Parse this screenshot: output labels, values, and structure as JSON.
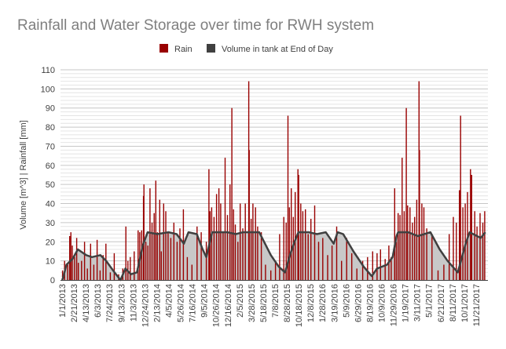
{
  "chart_data": {
    "type": "bar+area",
    "title": "Rainfall and Water Storage over time for RWH system",
    "ylabel": "Volume [m^3] | Rainfall [mm]",
    "xlabel": "",
    "ylim": [
      0,
      110
    ],
    "y_ticks": [
      0,
      10,
      20,
      30,
      40,
      50,
      60,
      70,
      80,
      90,
      100,
      110
    ],
    "grid": "horizontal major every 10, minor every 2",
    "legend_position": "top",
    "x_range": [
      "1/1/2013",
      "12/31/2017"
    ],
    "x_tick_labels": [
      "1/1/2013",
      "2/21/2013",
      "4/13/2013",
      "6/3/2013",
      "7/24/2013",
      "9/13/2013",
      "11/3/2013",
      "12/24/2013",
      "2/13/2014",
      "4/5/2014",
      "5/26/2014",
      "7/16/2014",
      "9/5/2014",
      "10/26/2014",
      "12/16/2014",
      "2/5/2015",
      "3/28/2015",
      "5/18/2015",
      "7/8/2015",
      "8/28/2015",
      "10/18/2015",
      "12/8/2015",
      "1/28/2016",
      "3/19/2016",
      "5/9/2016",
      "6/29/2016",
      "8/19/2016",
      "10/9/2016",
      "11/29/2016",
      "1/19/2017",
      "3/11/2017",
      "5/1/2017",
      "6/21/2017",
      "8/11/2017",
      "10/1/2017",
      "11/21/2017"
    ],
    "colors": {
      "rain": "#990000",
      "volume_line": "#404040",
      "volume_fill": "#c8c8c8"
    },
    "series": [
      {
        "name": "Rain",
        "type": "bar",
        "points": [
          [
            "1/3/2013",
            5
          ],
          [
            "1/12/2013",
            10
          ],
          [
            "1/25/2013",
            8
          ],
          [
            "2/3/2013",
            23
          ],
          [
            "2/8/2013",
            25
          ],
          [
            "2/14/2013",
            18
          ],
          [
            "2/24/2013",
            12
          ],
          [
            "3/5/2013",
            22
          ],
          [
            "3/12/2013",
            9
          ],
          [
            "3/26/2013",
            10
          ],
          [
            "4/8/2013",
            20
          ],
          [
            "4/20/2013",
            6
          ],
          [
            "5/4/2013",
            19
          ],
          [
            "5/18/2013",
            8
          ],
          [
            "6/1/2013",
            21
          ],
          [
            "6/14/2013",
            5
          ],
          [
            "6/27/2013",
            13
          ],
          [
            "7/9/2013",
            19
          ],
          [
            "7/28/2013",
            4
          ],
          [
            "8/14/2013",
            14
          ],
          [
            "9/2/2013",
            3
          ],
          [
            "9/20/2013",
            6
          ],
          [
            "10/3/2013",
            28
          ],
          [
            "10/12/2013",
            10
          ],
          [
            "10/22/2013",
            12
          ],
          [
            "11/8/2013",
            15
          ],
          [
            "11/25/2013",
            26
          ],
          [
            "12/2/2013",
            25
          ],
          [
            "12/10/2013",
            26
          ],
          [
            "12/18/2013",
            44
          ],
          [
            "12/20/2013",
            50
          ],
          [
            "12/28/2013",
            20
          ],
          [
            "1/6/2014",
            18
          ],
          [
            "1/15/2014",
            48
          ],
          [
            "1/24/2014",
            30
          ],
          [
            "2/2/2014",
            35
          ],
          [
            "2/9/2014",
            52
          ],
          [
            "2/16/2014",
            25
          ],
          [
            "2/26/2014",
            42
          ],
          [
            "3/5/2014",
            15
          ],
          [
            "3/15/2014",
            40
          ],
          [
            "3/24/2014",
            36
          ],
          [
            "4/3/2014",
            25
          ],
          [
            "4/15/2014",
            22
          ],
          [
            "4/28/2014",
            30
          ],
          [
            "5/12/2014",
            20
          ],
          [
            "5/24/2014",
            27
          ],
          [
            "6/8/2014",
            37
          ],
          [
            "6/25/2014",
            12
          ],
          [
            "7/15/2014",
            8
          ],
          [
            "8/6/2014",
            28
          ],
          [
            "8/24/2014",
            25
          ],
          [
            "9/15/2014",
            20
          ],
          [
            "9/26/2014",
            58
          ],
          [
            "10/1/2014",
            36
          ],
          [
            "10/8/2014",
            38
          ],
          [
            "10/18/2014",
            33
          ],
          [
            "10/29/2014",
            45
          ],
          [
            "11/8/2014",
            48
          ],
          [
            "11/16/2014",
            40
          ],
          [
            "11/26/2014",
            25
          ],
          [
            "12/5/2014",
            64
          ],
          [
            "12/15/2014",
            34
          ],
          [
            "12/26/2014",
            50
          ],
          [
            "1/3/2015",
            90
          ],
          [
            "1/10/2015",
            37
          ],
          [
            "1/18/2015",
            29
          ],
          [
            "1/29/2015",
            20
          ],
          [
            "2/8/2015",
            40
          ],
          [
            "2/19/2015",
            27
          ],
          [
            "3/2/2015",
            40
          ],
          [
            "3/17/2015",
            104
          ],
          [
            "3/19/2015",
            68
          ],
          [
            "3/27/2015",
            32
          ],
          [
            "4/4/2015",
            40
          ],
          [
            "4/15/2015",
            38
          ],
          [
            "4/24/2015",
            28
          ],
          [
            "5/10/2015",
            25
          ],
          [
            "5/28/2015",
            8
          ],
          [
            "6/20/2015",
            5
          ],
          [
            "7/10/2015",
            10
          ],
          [
            "7/28/2015",
            24
          ],
          [
            "8/15/2015",
            33
          ],
          [
            "8/25/2015",
            30
          ],
          [
            "9/2/2015",
            86
          ],
          [
            "9/8/2015",
            38
          ],
          [
            "9/16/2015",
            48
          ],
          [
            "9/25/2015",
            33
          ],
          [
            "10/3/2015",
            46
          ],
          [
            "10/15/2015",
            58
          ],
          [
            "10/18/2015",
            55
          ],
          [
            "10/27/2015",
            40
          ],
          [
            "11/5/2015",
            36
          ],
          [
            "11/16/2015",
            37
          ],
          [
            "11/28/2015",
            24
          ],
          [
            "12/10/2015",
            32
          ],
          [
            "12/26/2015",
            39
          ],
          [
            "1/12/2016",
            20
          ],
          [
            "1/30/2016",
            22
          ],
          [
            "2/20/2016",
            13
          ],
          [
            "3/10/2016",
            18
          ],
          [
            "3/30/2016",
            28
          ],
          [
            "4/20/2016",
            10
          ],
          [
            "5/12/2016",
            22
          ],
          [
            "6/3/2016",
            14
          ],
          [
            "6/25/2016",
            6
          ],
          [
            "7/20/2016",
            10
          ],
          [
            "8/10/2016",
            12
          ],
          [
            "9/1/2016",
            15
          ],
          [
            "9/20/2016",
            14
          ],
          [
            "10/5/2016",
            16
          ],
          [
            "10/25/2016",
            11
          ],
          [
            "11/10/2016",
            18
          ],
          [
            "11/20/2016",
            12
          ],
          [
            "12/5/2016",
            48
          ],
          [
            "12/12/2016",
            20
          ],
          [
            "12/20/2016",
            35
          ],
          [
            "12/28/2016",
            34
          ],
          [
            "1/6/2017",
            64
          ],
          [
            "1/15/2017",
            36
          ],
          [
            "1/24/2017",
            90
          ],
          [
            "1/30/2017",
            39
          ],
          [
            "2/9/2017",
            38
          ],
          [
            "2/20/2017",
            30
          ],
          [
            "3/1/2017",
            33
          ],
          [
            "3/10/2017",
            42
          ],
          [
            "3/20/2017",
            104
          ],
          [
            "3/22/2017",
            68
          ],
          [
            "4/1/2017",
            40
          ],
          [
            "4/10/2017",
            38
          ],
          [
            "4/22/2017",
            27
          ],
          [
            "5/15/2017",
            24
          ],
          [
            "6/10/2017",
            5
          ],
          [
            "7/5/2017",
            8
          ],
          [
            "7/28/2017",
            24
          ],
          [
            "8/15/2017",
            33
          ],
          [
            "8/28/2017",
            30
          ],
          [
            "9/10/2017",
            47
          ],
          [
            "9/15/2017",
            86
          ],
          [
            "9/25/2017",
            38
          ],
          [
            "10/5/2017",
            40
          ],
          [
            "10/15/2017",
            46
          ],
          [
            "10/28/2017",
            58
          ],
          [
            "11/2/2017",
            55
          ],
          [
            "11/15/2017",
            36
          ],
          [
            "11/25/2017",
            28
          ],
          [
            "12/8/2017",
            35
          ],
          [
            "12/20/2017",
            30
          ],
          [
            "12/28/2017",
            36
          ]
        ]
      },
      {
        "name": "Volume in tank at End of Day",
        "type": "area",
        "points": [
          [
            "1/1/2013",
            0
          ],
          [
            "1/5/2013",
            1
          ],
          [
            "1/20/2013",
            8
          ],
          [
            "2/15/2013",
            11
          ],
          [
            "3/10/2013",
            16
          ],
          [
            "4/15/2013",
            13
          ],
          [
            "5/10/2013",
            12
          ],
          [
            "6/15/2013",
            13
          ],
          [
            "7/10/2013",
            10
          ],
          [
            "8/15/2013",
            4
          ],
          [
            "9/10/2013",
            0
          ],
          [
            "10/1/2013",
            6
          ],
          [
            "10/25/2013",
            3
          ],
          [
            "11/20/2013",
            4
          ],
          [
            "12/15/2013",
            18
          ],
          [
            "1/5/2014",
            25
          ],
          [
            "2/15/2014",
            24
          ],
          [
            "4/5/2014",
            25
          ],
          [
            "5/10/2014",
            24
          ],
          [
            "6/10/2014",
            19
          ],
          [
            "6/30/2014",
            25
          ],
          [
            "8/5/2014",
            24
          ],
          [
            "8/30/2014",
            16
          ],
          [
            "9/15/2014",
            12
          ],
          [
            "10/10/2014",
            25
          ],
          [
            "12/15/2014",
            25
          ],
          [
            "1/20/2015",
            24
          ],
          [
            "2/20/2015",
            25
          ],
          [
            "4/1/2015",
            25
          ],
          [
            "5/1/2015",
            25
          ],
          [
            "6/20/2015",
            13
          ],
          [
            "7/24/2015",
            7
          ],
          [
            "8/20/2015",
            4
          ],
          [
            "9/13/2015",
            14
          ],
          [
            "9/30/2015",
            20
          ],
          [
            "10/17/2015",
            25
          ],
          [
            "12/1/2015",
            25
          ],
          [
            "1/5/2016",
            24
          ],
          [
            "2/12/2016",
            25
          ],
          [
            "3/17/2016",
            19
          ],
          [
            "4/3/2016",
            25
          ],
          [
            "4/27/2016",
            24
          ],
          [
            "6/10/2016",
            15
          ],
          [
            "7/24/2016",
            7
          ],
          [
            "8/28/2016",
            2
          ],
          [
            "9/20/2016",
            6
          ],
          [
            "11/2/2016",
            8
          ],
          [
            "11/26/2016",
            12
          ],
          [
            "12/13/2016",
            23
          ],
          [
            "12/20/2016",
            25
          ],
          [
            "2/1/2017",
            25
          ],
          [
            "3/15/2017",
            23
          ],
          [
            "5/8/2017",
            25
          ],
          [
            "6/17/2017",
            16
          ],
          [
            "7/21/2017",
            10
          ],
          [
            "9/3/2017",
            4
          ],
          [
            "9/17/2017",
            10
          ],
          [
            "10/7/2017",
            19
          ],
          [
            "10/24/2017",
            25
          ],
          [
            "12/11/2017",
            22
          ],
          [
            "12/31/2017",
            25
          ]
        ]
      }
    ]
  }
}
